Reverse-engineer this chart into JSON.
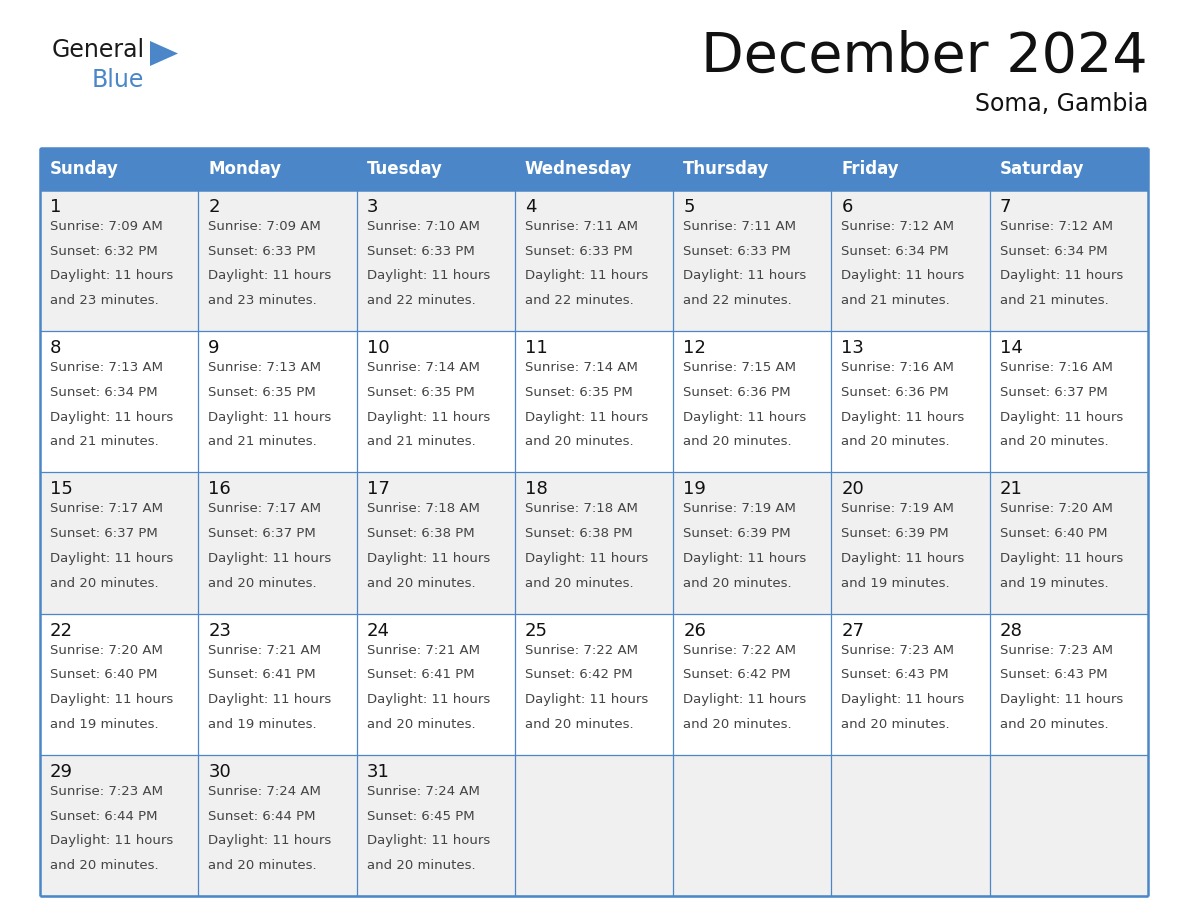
{
  "title": "December 2024",
  "subtitle": "Soma, Gambia",
  "days_of_week": [
    "Sunday",
    "Monday",
    "Tuesday",
    "Wednesday",
    "Thursday",
    "Friday",
    "Saturday"
  ],
  "header_bg": "#4a86c8",
  "header_text": "#ffffff",
  "cell_bg_odd": "#f0f0f0",
  "cell_bg_even": "#ffffff",
  "border_color": "#4a86c8",
  "text_color": "#444444",
  "day_num_color": "#111111",
  "weeks": [
    [
      {
        "day": 1,
        "sunrise": "7:09 AM",
        "sunset": "6:32 PM",
        "daylight_h": "11 hours",
        "daylight_m": "and 23 minutes."
      },
      {
        "day": 2,
        "sunrise": "7:09 AM",
        "sunset": "6:33 PM",
        "daylight_h": "11 hours",
        "daylight_m": "and 23 minutes."
      },
      {
        "day": 3,
        "sunrise": "7:10 AM",
        "sunset": "6:33 PM",
        "daylight_h": "11 hours",
        "daylight_m": "and 22 minutes."
      },
      {
        "day": 4,
        "sunrise": "7:11 AM",
        "sunset": "6:33 PM",
        "daylight_h": "11 hours",
        "daylight_m": "and 22 minutes."
      },
      {
        "day": 5,
        "sunrise": "7:11 AM",
        "sunset": "6:33 PM",
        "daylight_h": "11 hours",
        "daylight_m": "and 22 minutes."
      },
      {
        "day": 6,
        "sunrise": "7:12 AM",
        "sunset": "6:34 PM",
        "daylight_h": "11 hours",
        "daylight_m": "and 21 minutes."
      },
      {
        "day": 7,
        "sunrise": "7:12 AM",
        "sunset": "6:34 PM",
        "daylight_h": "11 hours",
        "daylight_m": "and 21 minutes."
      }
    ],
    [
      {
        "day": 8,
        "sunrise": "7:13 AM",
        "sunset": "6:34 PM",
        "daylight_h": "11 hours",
        "daylight_m": "and 21 minutes."
      },
      {
        "day": 9,
        "sunrise": "7:13 AM",
        "sunset": "6:35 PM",
        "daylight_h": "11 hours",
        "daylight_m": "and 21 minutes."
      },
      {
        "day": 10,
        "sunrise": "7:14 AM",
        "sunset": "6:35 PM",
        "daylight_h": "11 hours",
        "daylight_m": "and 21 minutes."
      },
      {
        "day": 11,
        "sunrise": "7:14 AM",
        "sunset": "6:35 PM",
        "daylight_h": "11 hours",
        "daylight_m": "and 20 minutes."
      },
      {
        "day": 12,
        "sunrise": "7:15 AM",
        "sunset": "6:36 PM",
        "daylight_h": "11 hours",
        "daylight_m": "and 20 minutes."
      },
      {
        "day": 13,
        "sunrise": "7:16 AM",
        "sunset": "6:36 PM",
        "daylight_h": "11 hours",
        "daylight_m": "and 20 minutes."
      },
      {
        "day": 14,
        "sunrise": "7:16 AM",
        "sunset": "6:37 PM",
        "daylight_h": "11 hours",
        "daylight_m": "and 20 minutes."
      }
    ],
    [
      {
        "day": 15,
        "sunrise": "7:17 AM",
        "sunset": "6:37 PM",
        "daylight_h": "11 hours",
        "daylight_m": "and 20 minutes."
      },
      {
        "day": 16,
        "sunrise": "7:17 AM",
        "sunset": "6:37 PM",
        "daylight_h": "11 hours",
        "daylight_m": "and 20 minutes."
      },
      {
        "day": 17,
        "sunrise": "7:18 AM",
        "sunset": "6:38 PM",
        "daylight_h": "11 hours",
        "daylight_m": "and 20 minutes."
      },
      {
        "day": 18,
        "sunrise": "7:18 AM",
        "sunset": "6:38 PM",
        "daylight_h": "11 hours",
        "daylight_m": "and 20 minutes."
      },
      {
        "day": 19,
        "sunrise": "7:19 AM",
        "sunset": "6:39 PM",
        "daylight_h": "11 hours",
        "daylight_m": "and 20 minutes."
      },
      {
        "day": 20,
        "sunrise": "7:19 AM",
        "sunset": "6:39 PM",
        "daylight_h": "11 hours",
        "daylight_m": "and 19 minutes."
      },
      {
        "day": 21,
        "sunrise": "7:20 AM",
        "sunset": "6:40 PM",
        "daylight_h": "11 hours",
        "daylight_m": "and 19 minutes."
      }
    ],
    [
      {
        "day": 22,
        "sunrise": "7:20 AM",
        "sunset": "6:40 PM",
        "daylight_h": "11 hours",
        "daylight_m": "and 19 minutes."
      },
      {
        "day": 23,
        "sunrise": "7:21 AM",
        "sunset": "6:41 PM",
        "daylight_h": "11 hours",
        "daylight_m": "and 19 minutes."
      },
      {
        "day": 24,
        "sunrise": "7:21 AM",
        "sunset": "6:41 PM",
        "daylight_h": "11 hours",
        "daylight_m": "and 20 minutes."
      },
      {
        "day": 25,
        "sunrise": "7:22 AM",
        "sunset": "6:42 PM",
        "daylight_h": "11 hours",
        "daylight_m": "and 20 minutes."
      },
      {
        "day": 26,
        "sunrise": "7:22 AM",
        "sunset": "6:42 PM",
        "daylight_h": "11 hours",
        "daylight_m": "and 20 minutes."
      },
      {
        "day": 27,
        "sunrise": "7:23 AM",
        "sunset": "6:43 PM",
        "daylight_h": "11 hours",
        "daylight_m": "and 20 minutes."
      },
      {
        "day": 28,
        "sunrise": "7:23 AM",
        "sunset": "6:43 PM",
        "daylight_h": "11 hours",
        "daylight_m": "and 20 minutes."
      }
    ],
    [
      {
        "day": 29,
        "sunrise": "7:23 AM",
        "sunset": "6:44 PM",
        "daylight_h": "11 hours",
        "daylight_m": "and 20 minutes."
      },
      {
        "day": 30,
        "sunrise": "7:24 AM",
        "sunset": "6:44 PM",
        "daylight_h": "11 hours",
        "daylight_m": "and 20 minutes."
      },
      {
        "day": 31,
        "sunrise": "7:24 AM",
        "sunset": "6:45 PM",
        "daylight_h": "11 hours",
        "daylight_m": "and 20 minutes."
      },
      null,
      null,
      null,
      null
    ]
  ],
  "logo_text1": "General",
  "logo_text2": "Blue",
  "logo_color1": "#1a1a1a",
  "logo_color2": "#4a86c8",
  "logo_triangle_color": "#4a86c8"
}
